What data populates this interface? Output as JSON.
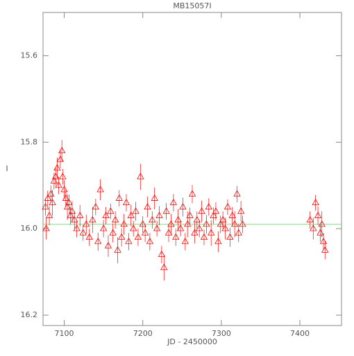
{
  "chart_data": {
    "type": "scatter",
    "title": "MB15057I",
    "x_label": "JD - 2450000",
    "y_label": "I",
    "xlim": [
      7073,
      7453
    ],
    "ylim": [
      16.224,
      15.5
    ],
    "xticks": [
      7100,
      7200,
      7300,
      7400
    ],
    "yticks": [
      {
        "value": 15.6,
        "label": "15.6"
      },
      {
        "value": 15.8,
        "label": "15.8"
      },
      {
        "value": 16.0,
        "label": "16.0"
      },
      {
        "value": 16.2,
        "label": "16.2"
      }
    ],
    "model": {
      "x": [
        7073,
        7453
      ],
      "values": [
        15.99,
        15.99
      ],
      "color": "#7fd87f"
    },
    "series": [
      {
        "color": "#ff0000",
        "marker": "triangle",
        "x": [
          7076,
          7077,
          7079,
          7081,
          7083,
          7085,
          7087,
          7089,
          7091,
          7093,
          7095,
          7097,
          7098,
          7100,
          7102,
          7104,
          7106,
          7108,
          7110,
          7113,
          7116,
          7120,
          7124,
          7128,
          7132,
          7136,
          7140,
          7143,
          7146,
          7150,
          7153,
          7156,
          7159,
          7162,
          7165,
          7168,
          7170,
          7173,
          7176,
          7179,
          7182,
          7185,
          7188,
          7191,
          7194,
          7197,
          7200,
          7203,
          7206,
          7209,
          7212,
          7215,
          7218,
          7221,
          7224,
          7227,
          7230,
          7233,
          7236,
          7239,
          7242,
          7245,
          7248,
          7251,
          7254,
          7257,
          7260,
          7263,
          7266,
          7269,
          7272,
          7275,
          7278,
          7281,
          7284,
          7287,
          7290,
          7293,
          7296,
          7299,
          7302,
          7305,
          7308,
          7311,
          7314,
          7317,
          7320,
          7322,
          7325,
          7327,
          7413,
          7417,
          7420,
          7423,
          7426,
          7428,
          7430,
          7432
        ],
        "values": [
          15.95,
          16.0,
          15.93,
          15.97,
          15.92,
          15.94,
          15.89,
          15.88,
          15.86,
          15.9,
          15.84,
          15.82,
          15.88,
          15.91,
          15.93,
          15.95,
          15.94,
          15.97,
          15.96,
          15.98,
          16.0,
          15.97,
          16.01,
          15.99,
          16.02,
          15.98,
          15.95,
          16.03,
          15.91,
          16.0,
          15.97,
          16.04,
          15.96,
          16.01,
          15.98,
          16.05,
          15.93,
          16.02,
          15.99,
          15.94,
          16.03,
          15.97,
          16.0,
          15.96,
          16.02,
          15.88,
          15.99,
          16.01,
          15.95,
          16.03,
          15.98,
          15.93,
          16.0,
          15.97,
          16.06,
          16.09,
          15.96,
          16.01,
          15.99,
          15.94,
          16.02,
          15.98,
          16.0,
          15.95,
          16.03,
          15.99,
          15.97,
          15.92,
          16.01,
          15.98,
          16.0,
          15.96,
          16.02,
          15.99,
          15.95,
          16.01,
          15.97,
          15.96,
          16.03,
          15.99,
          15.98,
          16.0,
          15.95,
          16.02,
          15.97,
          15.99,
          15.92,
          16.01,
          15.96,
          15.99,
          15.98,
          16.0,
          15.94,
          15.97,
          16.01,
          15.99,
          16.03,
          16.05
        ],
        "errors": [
          0.02,
          0.025,
          0.018,
          0.022,
          0.02,
          0.03,
          0.019,
          0.021,
          0.024,
          0.02,
          0.02,
          0.025,
          0.018,
          0.022,
          0.02,
          0.03,
          0.019,
          0.021,
          0.024,
          0.02,
          0.02,
          0.025,
          0.018,
          0.022,
          0.02,
          0.03,
          0.019,
          0.021,
          0.024,
          0.02,
          0.02,
          0.025,
          0.018,
          0.022,
          0.02,
          0.03,
          0.019,
          0.021,
          0.024,
          0.02,
          0.02,
          0.025,
          0.018,
          0.022,
          0.02,
          0.03,
          0.019,
          0.021,
          0.024,
          0.02,
          0.02,
          0.025,
          0.018,
          0.022,
          0.02,
          0.03,
          0.019,
          0.021,
          0.024,
          0.02,
          0.02,
          0.025,
          0.018,
          0.022,
          0.02,
          0.03,
          0.019,
          0.021,
          0.024,
          0.02,
          0.02,
          0.025,
          0.018,
          0.022,
          0.02,
          0.03,
          0.019,
          0.021,
          0.024,
          0.02,
          0.02,
          0.025,
          0.018,
          0.022,
          0.02,
          0.03,
          0.019,
          0.021,
          0.024,
          0.02,
          0.02,
          0.025,
          0.018,
          0.022,
          0.02,
          0.03,
          0.019,
          0.021
        ]
      }
    ]
  }
}
